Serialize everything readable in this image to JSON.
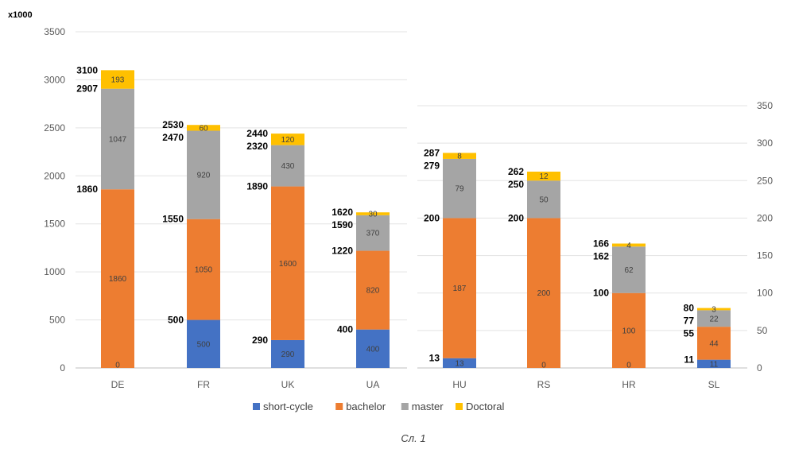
{
  "caption": "Сл. 1",
  "colors": {
    "short-cycle": "#4472C4",
    "bachelor": "#ED7D31",
    "master": "#A5A5A5",
    "Doctoral": "#FFC000"
  },
  "chart_data": [
    {
      "type": "bar",
      "stacked": true,
      "unit_label": "x1000",
      "yaxis_side": "left",
      "ylim": [
        0,
        3500
      ],
      "yticks": [
        0,
        500,
        1000,
        1500,
        2000,
        2500,
        3000,
        3500
      ],
      "grid": true,
      "categories": [
        "DE",
        "FR",
        "UK",
        "UA"
      ],
      "series": [
        {
          "name": "short-cycle",
          "values": [
            0,
            500,
            290,
            400
          ]
        },
        {
          "name": "bachelor",
          "values": [
            1860,
            1050,
            1600,
            820
          ]
        },
        {
          "name": "master",
          "values": [
            1047,
            920,
            430,
            370
          ]
        },
        {
          "name": "Doctoral",
          "values": [
            193,
            60,
            120,
            30
          ]
        }
      ],
      "cumulative_labels": [
        [
          "1860",
          "2907",
          "3100"
        ],
        [
          "500",
          "1550",
          "2470",
          "2530"
        ],
        [
          "290",
          "1890",
          "2320",
          "2440"
        ],
        [
          "400",
          "1220",
          "1590",
          "1620"
        ]
      ]
    },
    {
      "type": "bar",
      "stacked": true,
      "yaxis_side": "right",
      "ylim": [
        0,
        350
      ],
      "yticks": [
        0,
        50,
        100,
        150,
        200,
        250,
        300,
        350
      ],
      "grid": true,
      "categories": [
        "HU",
        "RS",
        "HR",
        "SL"
      ],
      "series": [
        {
          "name": "short-cycle",
          "values": [
            13,
            0,
            0,
            11
          ]
        },
        {
          "name": "bachelor",
          "values": [
            187,
            200,
            100,
            44
          ]
        },
        {
          "name": "master",
          "values": [
            79,
            50,
            62,
            22
          ]
        },
        {
          "name": "Doctoral",
          "values": [
            8,
            12,
            4,
            3
          ]
        }
      ],
      "cumulative_labels": [
        [
          "13",
          "200",
          "279",
          "287"
        ],
        [
          "200",
          "250",
          "262"
        ],
        [
          "100",
          "162",
          "166"
        ],
        [
          "11",
          "55",
          "77",
          "80"
        ]
      ]
    }
  ],
  "legend": [
    "short-cycle",
    "bachelor",
    "master",
    "Doctoral"
  ]
}
